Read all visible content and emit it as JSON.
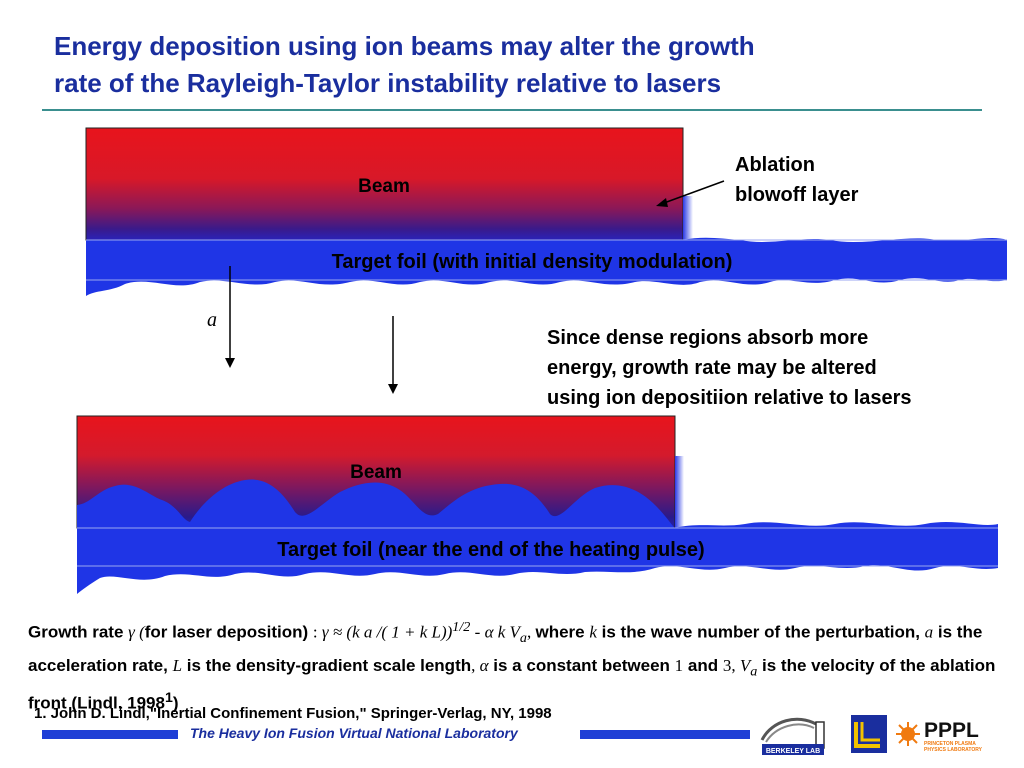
{
  "title": {
    "line1": "Energy deposition using ion beams may alter the growth",
    "line2": "rate of the Rayleigh-Taylor instability relative to lasers"
  },
  "diagram": {
    "top": {
      "beam_label": "Beam",
      "foil_label": "Target foil (with initial density modulation)"
    },
    "bottom": {
      "beam_label": "Beam",
      "foil_label": "Target foil (near the end of the heating pulse)"
    },
    "accel_label": "a",
    "ablation_label": [
      "Ablation",
      "blowoff layer"
    ],
    "since_text": [
      "Since dense regions absorb more",
      "energy, growth rate may be altered",
      "using ion depositiion relative to lasers"
    ],
    "colors": {
      "beam": "#e8141c",
      "foil": "#1f35e6",
      "blowoff": "#3a1a8a"
    }
  },
  "growth_text": {
    "p1": "Growth rate ",
    "gamma": "γ (",
    "p2": "for laser deposition) ",
    "colon": ":  ",
    "formula": "γ ≈ (k a /( 1 + k L))",
    "sup": "1/2",
    "minus": " - ",
    "alpha_k_v": "α k V",
    "sub_a": "a",
    "comma1": ", ",
    "where": "where ",
    "k": "k",
    "p3": " is the wave number of the perturbation, ",
    "a": "a",
    "p4": " is the acceleration rate, ",
    "L": "L",
    "p5": " is the density-gradient scale length",
    "comma2": ", ",
    "alpha": "α",
    "p6": " is a constant between ",
    "one": "1",
    "and": " and ",
    "three": "3, ",
    "V": "V",
    "sub_a2": "a",
    "p7": " is the velocity of the ablation front (Lindl, 1998",
    "sup1": "1",
    "p8": ")"
  },
  "reference": "1. John D. Lindl,\"Inertial Confinement Fusion,\" Springer-Verlag, NY, 1998",
  "footer": {
    "text": "The Heavy Ion Fusion Virtual National Laboratory",
    "logo1_caption": "BERKELEY LAB",
    "logo3_main": "PPPL",
    "logo3_sub1": "PRINCETON PLASMA",
    "logo3_sub2": "PHYSICS LABORATORY"
  }
}
